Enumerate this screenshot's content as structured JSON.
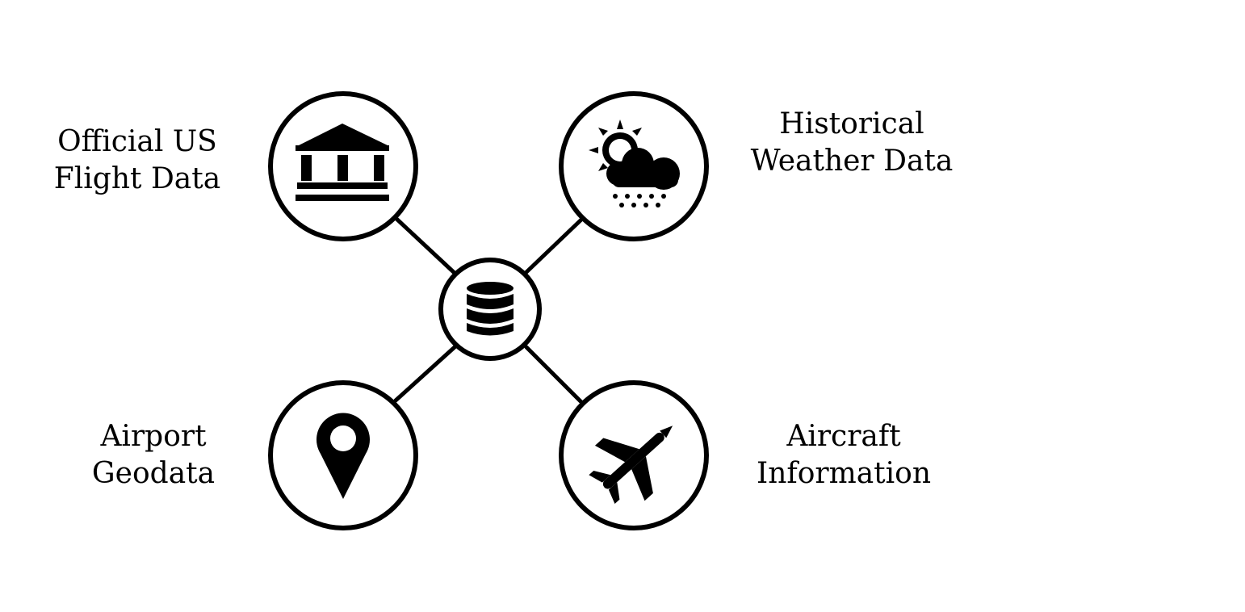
{
  "nodes": {
    "center": {
      "icon": "database-icon"
    },
    "top_left": {
      "icon": "government-building-icon",
      "label_lines": [
        "Official US",
        "Flight Data"
      ]
    },
    "top_right": {
      "icon": "weather-sun-cloud-rain-icon",
      "label_lines": [
        "Historical",
        "Weather Data"
      ]
    },
    "bottom_left": {
      "icon": "map-pin-icon",
      "label_lines": [
        "Airport",
        "Geodata"
      ]
    },
    "bottom_right": {
      "icon": "airplane-icon",
      "label_lines": [
        "Aircraft",
        "Information"
      ]
    }
  },
  "colors": {
    "stroke": "#000000",
    "fill": "#ffffff"
  }
}
